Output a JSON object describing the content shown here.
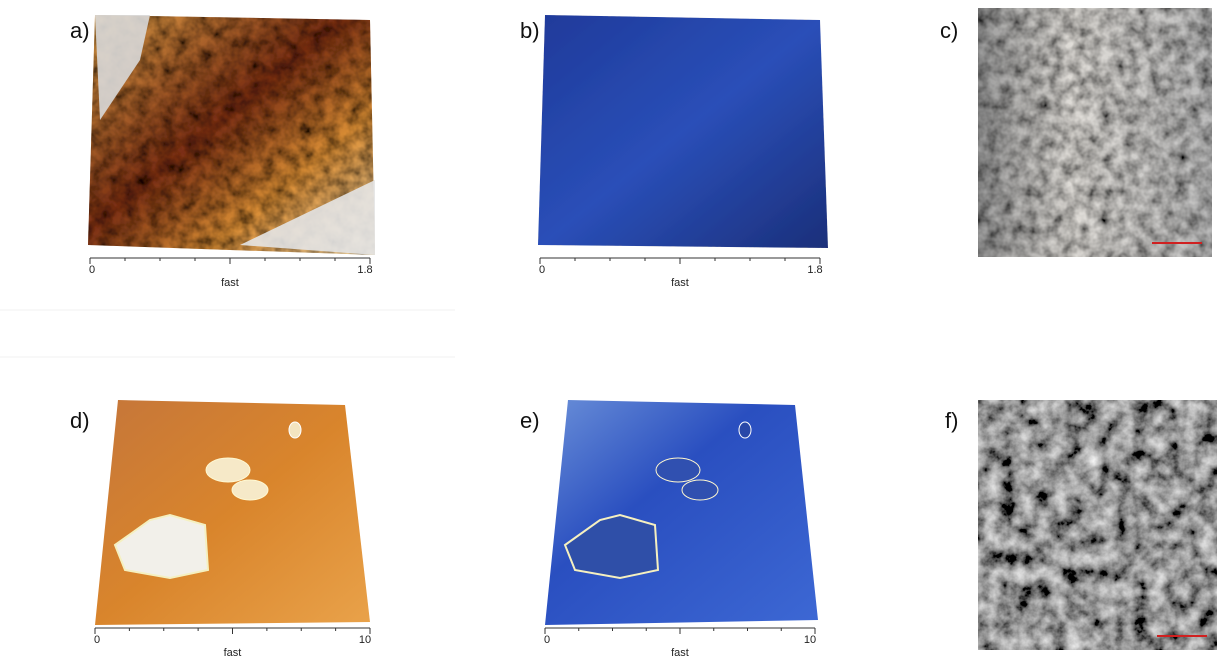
{
  "panels": [
    {
      "label": "a)",
      "axis": {
        "start": "0",
        "end": "1.8",
        "title": "fast"
      }
    },
    {
      "label": "b)",
      "axis": {
        "start": "0",
        "end": "1.8",
        "title": "fast"
      }
    },
    {
      "label": "c)"
    },
    {
      "label": "d)",
      "axis": {
        "start": "0",
        "end": "10",
        "title": "fast"
      }
    },
    {
      "label": "e)",
      "axis": {
        "start": "0",
        "end": "10",
        "title": "fast"
      }
    },
    {
      "label": "f)"
    }
  ]
}
